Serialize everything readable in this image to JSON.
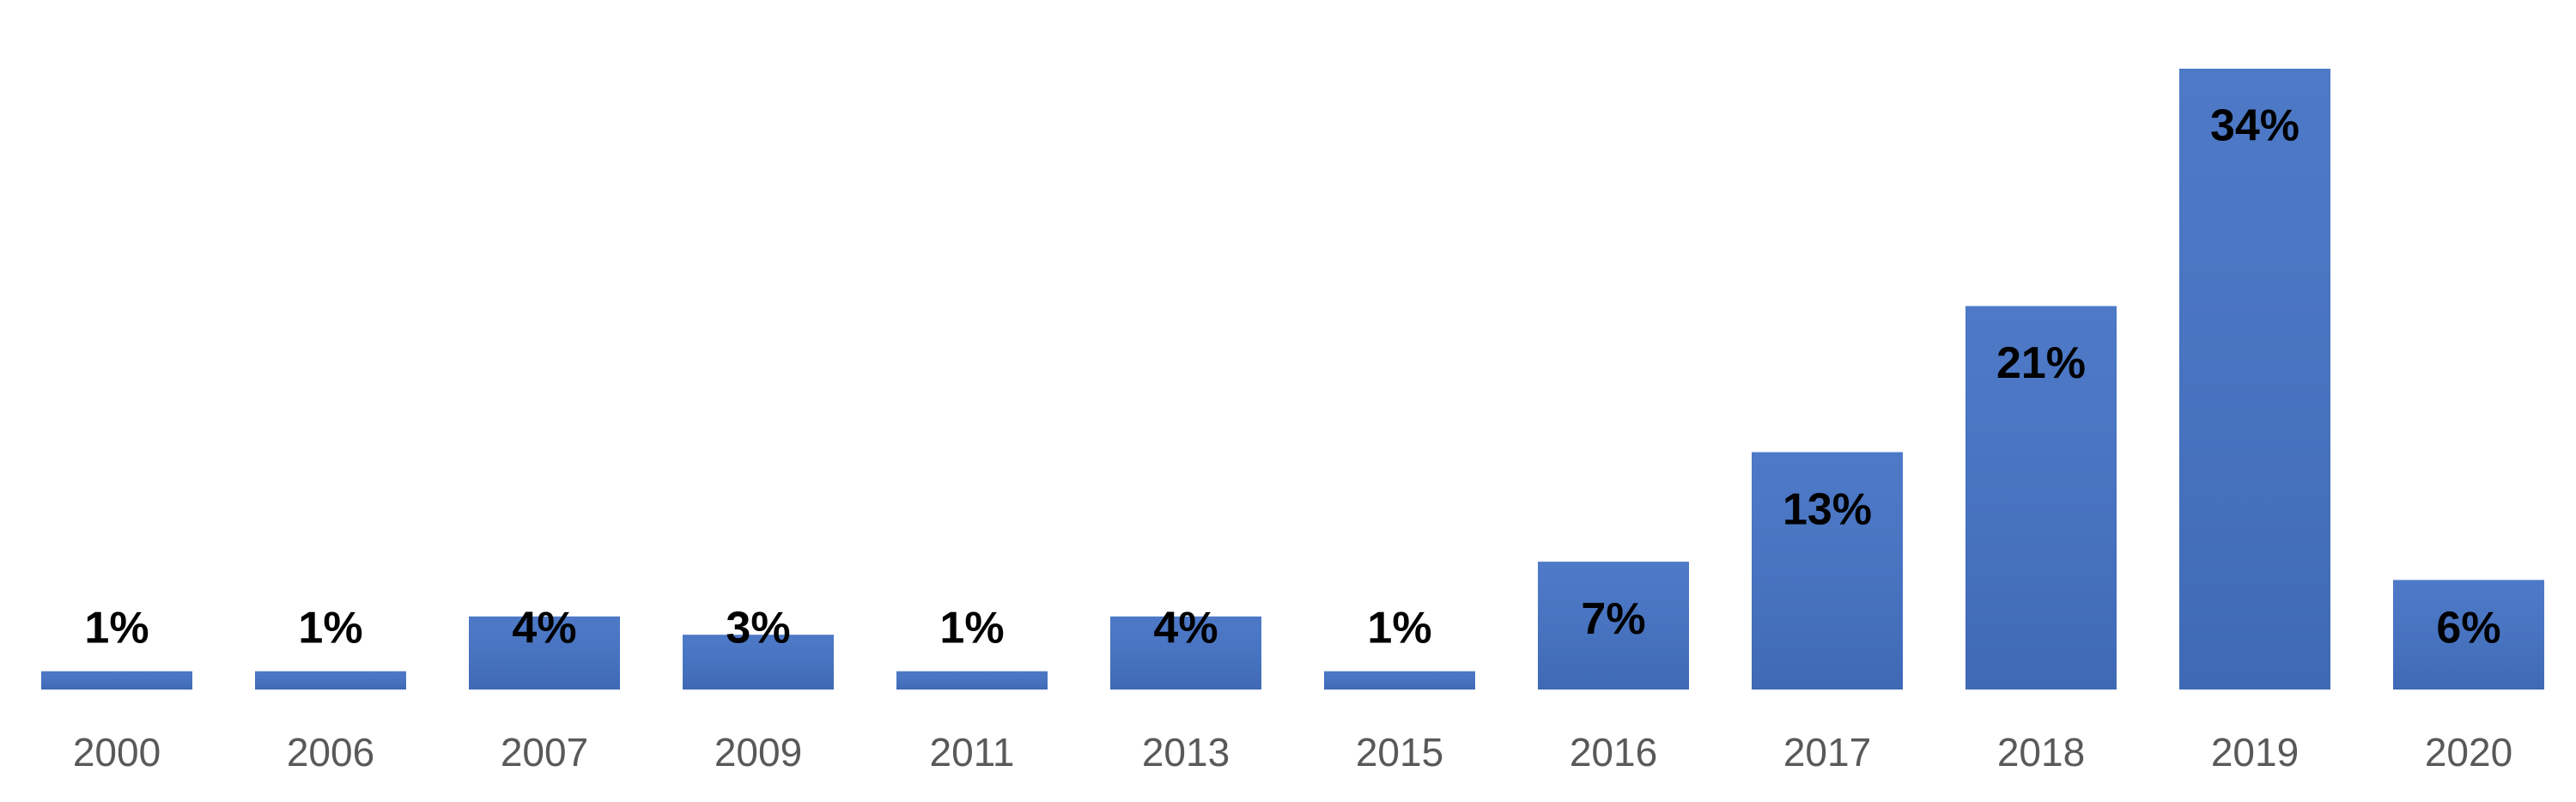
{
  "chart_data": {
    "type": "bar",
    "categories": [
      "2000",
      "2006",
      "2007",
      "2009",
      "2011",
      "2013",
      "2015",
      "2016",
      "2017",
      "2018",
      "2019",
      "2020"
    ],
    "values": [
      1,
      1,
      4,
      3,
      1,
      4,
      1,
      7,
      13,
      21,
      34,
      6
    ],
    "value_labels": [
      "1%",
      "1%",
      "4%",
      "3%",
      "1%",
      "4%",
      "1%",
      "7%",
      "13%",
      "21%",
      "34%",
      "6%"
    ],
    "color": "#4472c4"
  }
}
